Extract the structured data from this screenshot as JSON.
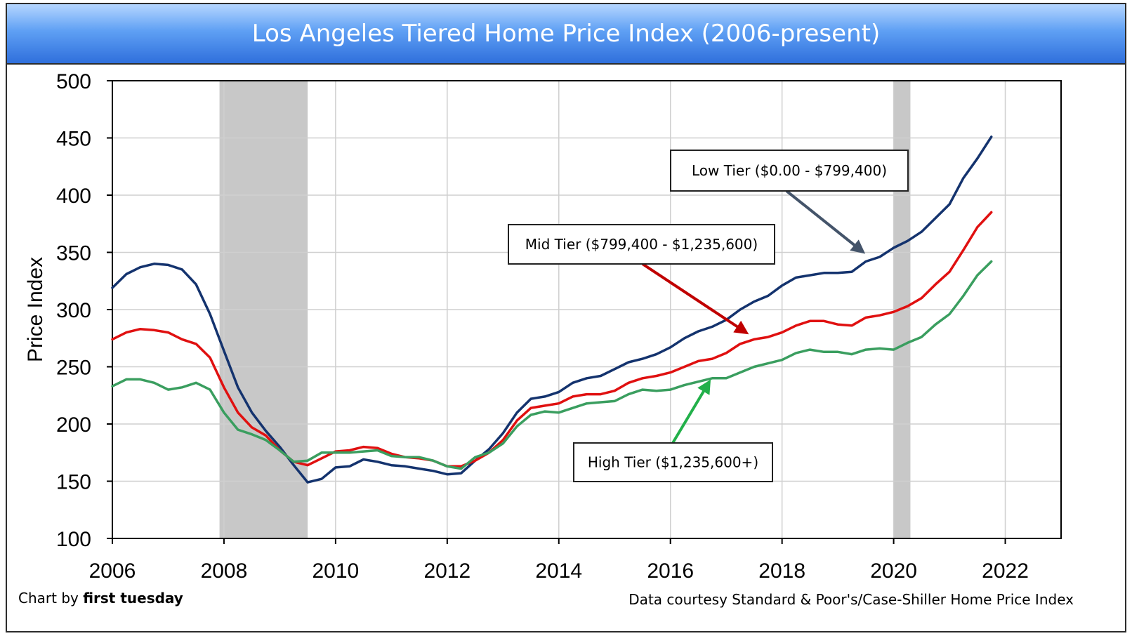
{
  "chart_data": {
    "type": "line",
    "title": "Los Angeles Tiered Home Price Index (2006-present)",
    "xlabel": "",
    "ylabel": "Price Index",
    "xlim": [
      2006,
      2023
    ],
    "ylim": [
      100,
      500
    ],
    "x_ticks": [
      2006,
      2008,
      2010,
      2012,
      2014,
      2016,
      2018,
      2020,
      2022
    ],
    "y_ticks": [
      100,
      150,
      200,
      250,
      300,
      350,
      400,
      450,
      500
    ],
    "grid": true,
    "recessions": [
      [
        2007.92,
        2009.5
      ],
      [
        2020.0,
        2020.3
      ]
    ],
    "colors": {
      "low": "#14336e",
      "mid": "#e01010",
      "high": "#3a9e5f",
      "recession": "#c8c8c8",
      "banner": "#4a8df0"
    },
    "series": [
      {
        "name": "Low Tier ($0.00 - $799,400)",
        "color": "#14336e",
        "x": [
          2006.0,
          2006.25,
          2006.5,
          2006.75,
          2007.0,
          2007.25,
          2007.5,
          2007.75,
          2008.0,
          2008.25,
          2008.5,
          2008.75,
          2009.0,
          2009.25,
          2009.5,
          2009.75,
          2010.0,
          2010.25,
          2010.5,
          2010.75,
          2011.0,
          2011.25,
          2011.5,
          2011.75,
          2012.0,
          2012.25,
          2012.5,
          2012.75,
          2013.0,
          2013.25,
          2013.5,
          2013.75,
          2014.0,
          2014.25,
          2014.5,
          2014.75,
          2015.0,
          2015.25,
          2015.5,
          2015.75,
          2016.0,
          2016.25,
          2016.5,
          2016.75,
          2017.0,
          2017.25,
          2017.5,
          2017.75,
          2018.0,
          2018.25,
          2018.5,
          2018.75,
          2019.0,
          2019.25,
          2019.5,
          2019.75,
          2020.0,
          2020.25,
          2020.5,
          2020.75,
          2021.0,
          2021.25,
          2021.5,
          2021.75
        ],
        "y": [
          319,
          331,
          337,
          340,
          339,
          335,
          322,
          296,
          264,
          232,
          210,
          194,
          180,
          164,
          149,
          152,
          162,
          163,
          169,
          167,
          164,
          163,
          161,
          159,
          156,
          157,
          168,
          178,
          192,
          210,
          222,
          224,
          228,
          236,
          240,
          242,
          248,
          254,
          257,
          261,
          267,
          275,
          281,
          285,
          291,
          300,
          307,
          312,
          321,
          328,
          330,
          332,
          332,
          333,
          342,
          346,
          354,
          360,
          368,
          380,
          392,
          415,
          432,
          451
        ]
      },
      {
        "name": "Mid Tier ($799,400 - $1,235,600)",
        "color": "#e01010",
        "x": [
          2006.0,
          2006.25,
          2006.5,
          2006.75,
          2007.0,
          2007.25,
          2007.5,
          2007.75,
          2008.0,
          2008.25,
          2008.5,
          2008.75,
          2009.0,
          2009.25,
          2009.5,
          2009.75,
          2010.0,
          2010.25,
          2010.5,
          2010.75,
          2011.0,
          2011.25,
          2011.5,
          2011.75,
          2012.0,
          2012.25,
          2012.5,
          2012.75,
          2013.0,
          2013.25,
          2013.5,
          2013.75,
          2014.0,
          2014.25,
          2014.5,
          2014.75,
          2015.0,
          2015.25,
          2015.5,
          2015.75,
          2016.0,
          2016.25,
          2016.5,
          2016.75,
          2017.0,
          2017.25,
          2017.5,
          2017.75,
          2018.0,
          2018.25,
          2018.5,
          2018.75,
          2019.0,
          2019.25,
          2019.5,
          2019.75,
          2020.0,
          2020.25,
          2020.5,
          2020.75,
          2021.0,
          2021.25,
          2021.5,
          2021.75
        ],
        "y": [
          274,
          280,
          283,
          282,
          280,
          274,
          270,
          258,
          232,
          210,
          197,
          190,
          177,
          167,
          164,
          170,
          176,
          177,
          180,
          179,
          174,
          171,
          170,
          168,
          163,
          163,
          168,
          175,
          186,
          203,
          214,
          216,
          218,
          224,
          226,
          226,
          229,
          236,
          240,
          242,
          245,
          250,
          255,
          257,
          262,
          270,
          274,
          276,
          280,
          286,
          290,
          290,
          287,
          286,
          293,
          295,
          298,
          303,
          310,
          322,
          333,
          352,
          372,
          385
        ]
      },
      {
        "name": "High Tier ($1,235,600+)",
        "color": "#3a9e5f",
        "x": [
          2006.0,
          2006.25,
          2006.5,
          2006.75,
          2007.0,
          2007.25,
          2007.5,
          2007.75,
          2008.0,
          2008.25,
          2008.5,
          2008.75,
          2009.0,
          2009.25,
          2009.5,
          2009.75,
          2010.0,
          2010.25,
          2010.5,
          2010.75,
          2011.0,
          2011.25,
          2011.5,
          2011.75,
          2012.0,
          2012.25,
          2012.5,
          2012.75,
          2013.0,
          2013.25,
          2013.5,
          2013.75,
          2014.0,
          2014.25,
          2014.5,
          2014.75,
          2015.0,
          2015.25,
          2015.5,
          2015.75,
          2016.0,
          2016.25,
          2016.5,
          2016.75,
          2017.0,
          2017.25,
          2017.5,
          2017.75,
          2018.0,
          2018.25,
          2018.5,
          2018.75,
          2019.0,
          2019.25,
          2019.5,
          2019.75,
          2020.0,
          2020.25,
          2020.5,
          2020.75,
          2021.0,
          2021.25,
          2021.5,
          2021.75
        ],
        "y": [
          233,
          239,
          239,
          236,
          230,
          232,
          236,
          230,
          210,
          195,
          191,
          186,
          177,
          167,
          168,
          175,
          175,
          175,
          176,
          177,
          172,
          171,
          171,
          168,
          163,
          161,
          171,
          175,
          183,
          198,
          208,
          211,
          210,
          214,
          218,
          219,
          220,
          226,
          230,
          229,
          230,
          234,
          237,
          240,
          240,
          245,
          250,
          253,
          256,
          262,
          265,
          263,
          263,
          261,
          265,
          266,
          265,
          271,
          276,
          287,
          296,
          312,
          330,
          342
        ]
      }
    ],
    "annotations": [
      {
        "text": "Low Tier ($0.00 - $799,400)",
        "series": 0
      },
      {
        "text": "Mid Tier ($799,400 - $1,235,600)",
        "series": 1
      },
      {
        "text": "High Tier ($1,235,600+)",
        "series": 2
      }
    ]
  },
  "footer": {
    "credit_prefix": "Chart by ",
    "credit_name": "first tuesday",
    "source": "Data courtesy Standard & Poor's/Case-Shiller Home Price Index"
  }
}
